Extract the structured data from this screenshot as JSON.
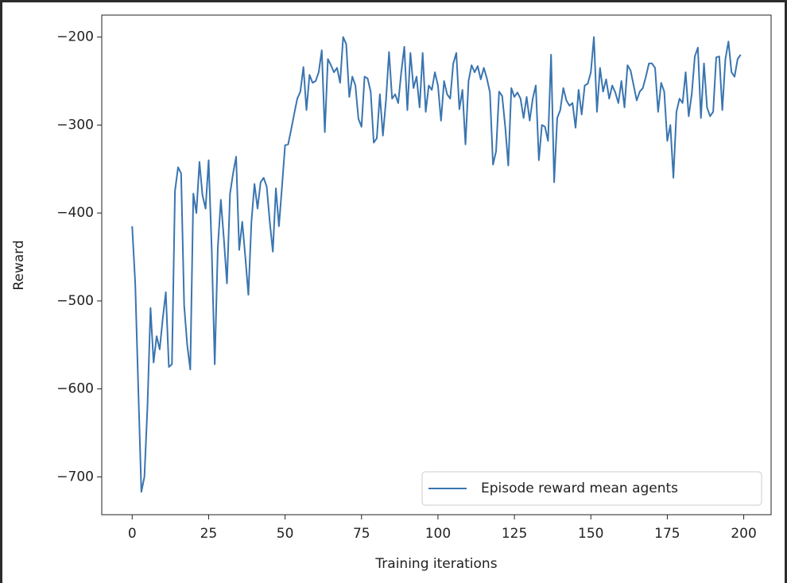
{
  "chart_data": {
    "type": "line",
    "xlabel": "Training iterations",
    "ylabel": "Reward",
    "x": [
      0,
      1,
      2,
      3,
      4,
      5,
      6,
      7,
      8,
      9,
      10,
      11,
      12,
      13,
      14,
      15,
      16,
      17,
      18,
      19,
      20,
      21,
      22,
      23,
      24,
      25,
      26,
      27,
      28,
      29,
      30,
      31,
      32,
      33,
      34,
      35,
      36,
      37,
      38,
      39,
      40,
      41,
      42,
      43,
      44,
      45,
      46,
      47,
      48,
      49,
      50,
      51,
      52,
      53,
      54,
      55,
      56,
      57,
      58,
      59,
      60,
      61,
      62,
      63,
      64,
      65,
      66,
      67,
      68,
      69,
      70,
      71,
      72,
      73,
      74,
      75,
      76,
      77,
      78,
      79,
      80,
      81,
      82,
      83,
      84,
      85,
      86,
      87,
      88,
      89,
      90,
      91,
      92,
      93,
      94,
      95,
      96,
      97,
      98,
      99,
      100,
      101,
      102,
      103,
      104,
      105,
      106,
      107,
      108,
      109,
      110,
      111,
      112,
      113,
      114,
      115,
      116,
      117,
      118,
      119,
      120,
      121,
      122,
      123,
      124,
      125,
      126,
      127,
      128,
      129,
      130,
      131,
      132,
      133,
      134,
      135,
      136,
      137,
      138,
      139,
      140,
      141,
      142,
      143,
      144,
      145,
      146,
      147,
      148,
      149,
      150,
      151,
      152,
      153,
      154,
      155,
      156,
      157,
      158,
      159,
      160,
      161,
      162,
      163,
      164,
      165,
      166,
      167,
      168,
      169,
      170,
      171,
      172,
      173,
      174,
      175,
      176,
      177,
      178,
      179,
      180,
      181,
      182,
      183,
      184,
      185,
      186,
      187,
      188,
      189,
      190,
      191,
      192,
      193,
      194,
      195,
      196,
      197,
      198,
      199
    ],
    "series": [
      {
        "name": "Episode reward mean agents",
        "color": "#3a75b0",
        "values": [
          -415,
          -480,
          -600,
          -717,
          -700,
          -620,
          -508,
          -570,
          -540,
          -555,
          -520,
          -490,
          -575,
          -572,
          -375,
          -348,
          -355,
          -505,
          -550,
          -578,
          -378,
          -400,
          -342,
          -380,
          -395,
          -340,
          -440,
          -572,
          -440,
          -385,
          -430,
          -480,
          -378,
          -355,
          -336,
          -442,
          -410,
          -450,
          -493,
          -410,
          -367,
          -395,
          -365,
          -360,
          -370,
          -410,
          -444,
          -372,
          -415,
          -370,
          -323,
          -322,
          -305,
          -287,
          -270,
          -262,
          -234,
          -283,
          -243,
          -252,
          -250,
          -240,
          -215,
          -308,
          -225,
          -232,
          -240,
          -235,
          -252,
          -200,
          -208,
          -268,
          -245,
          -255,
          -293,
          -302,
          -245,
          -247,
          -262,
          -320,
          -315,
          -265,
          -312,
          -272,
          -217,
          -270,
          -265,
          -275,
          -240,
          -211,
          -283,
          -218,
          -258,
          -245,
          -280,
          -218,
          -285,
          -255,
          -260,
          -240,
          -255,
          -295,
          -250,
          -265,
          -270,
          -230,
          -218,
          -282,
          -260,
          -322,
          -250,
          -232,
          -240,
          -233,
          -248,
          -235,
          -247,
          -263,
          -345,
          -330,
          -262,
          -267,
          -302,
          -346,
          -258,
          -268,
          -263,
          -270,
          -292,
          -268,
          -295,
          -270,
          -255,
          -340,
          -300,
          -302,
          -318,
          -220,
          -365,
          -292,
          -283,
          -258,
          -272,
          -278,
          -275,
          -303,
          -260,
          -288,
          -255,
          -253,
          -240,
          -200,
          -285,
          -235,
          -262,
          -248,
          -270,
          -255,
          -263,
          -275,
          -250,
          -280,
          -232,
          -238,
          -255,
          -272,
          -262,
          -258,
          -245,
          -230,
          -230,
          -235,
          -285,
          -252,
          -262,
          -318,
          -300,
          -360,
          -285,
          -270,
          -275,
          -240,
          -290,
          -265,
          -222,
          -212,
          -292,
          -230,
          -280,
          -290,
          -285,
          -223,
          -222,
          -283,
          -225,
          -205,
          -240,
          -245,
          -225,
          -220
        ]
      }
    ],
    "xlim": [
      -9.95,
      208.95
    ],
    "ylim": [
      -743,
      -175
    ],
    "xticks": [
      0,
      25,
      50,
      75,
      100,
      125,
      150,
      175,
      200
    ],
    "yticks": [
      {
        "value": -700,
        "label": "−700"
      },
      {
        "value": -600,
        "label": "−600"
      },
      {
        "value": -500,
        "label": "−500"
      },
      {
        "value": -400,
        "label": "−400"
      },
      {
        "value": -300,
        "label": "−300"
      },
      {
        "value": -200,
        "label": "−200"
      }
    ],
    "legend": "lower right"
  }
}
